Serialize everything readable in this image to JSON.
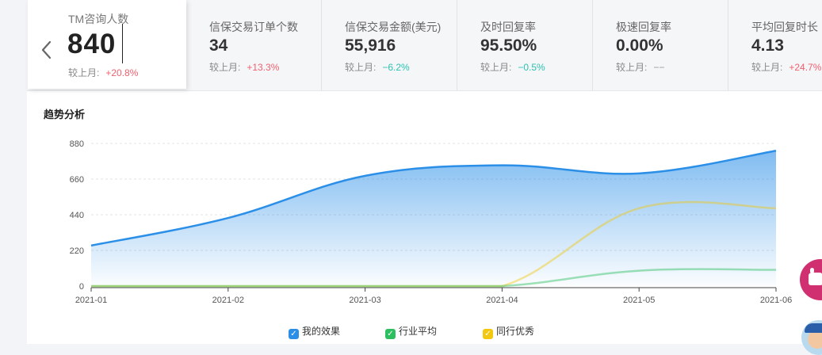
{
  "metrics": [
    {
      "label": "TM咨询人数",
      "value": "840",
      "cmp_label": "较上月:",
      "delta": "+20.8%",
      "trend": "up"
    },
    {
      "label": "信保交易订单个数",
      "value": "34",
      "cmp_label": "较上月:",
      "delta": "+13.3%",
      "trend": "up"
    },
    {
      "label": "信保交易金额(美元)",
      "value": "55,916",
      "cmp_label": "较上月:",
      "delta": "−6.2%",
      "trend": "down"
    },
    {
      "label": "及时回复率",
      "value": "95.50%",
      "cmp_label": "较上月:",
      "delta": "−0.5%",
      "trend": "down"
    },
    {
      "label": "极速回复率",
      "value": "0.00%",
      "cmp_label": "较上月:",
      "delta": "−−",
      "trend": "flat"
    },
    {
      "label": "平均回复时长",
      "value": "4.13",
      "cmp_label": "较上月:",
      "delta": "+24.7%",
      "trend": "up"
    }
  ],
  "section_title": "趋势分析",
  "icons": {
    "back": "chevron-left-icon",
    "float_button": "chat-icon",
    "avatar": "assistant-avatar-icon",
    "check": "checkmark-icon"
  },
  "colors": {
    "mine": "#2b8fe8",
    "industry": "#2dbe60",
    "peer": "#f2c811",
    "up": "#f0606f",
    "down": "#2cc1b1"
  },
  "chart_data": {
    "type": "area",
    "title": "",
    "xlabel": "",
    "ylabel": "",
    "categories": [
      "2021-01",
      "2021-02",
      "2021-03",
      "2021-04",
      "2021-05",
      "2021-06"
    ],
    "y_ticks": [
      0,
      220,
      440,
      660,
      880
    ],
    "ylim": [
      0,
      880
    ],
    "grid": true,
    "legend_position": "bottom",
    "series": [
      {
        "name": "我的效果",
        "color": "#2b8fe8",
        "values": [
          250,
          420,
          680,
          745,
          695,
          835
        ]
      },
      {
        "name": "行业平均",
        "color": "#2dbe60",
        "values": [
          0,
          0,
          0,
          0,
          95,
          100
        ]
      },
      {
        "name": "同行优秀",
        "color": "#f2c811",
        "values": [
          0,
          0,
          0,
          0,
          480,
          480
        ]
      }
    ]
  }
}
